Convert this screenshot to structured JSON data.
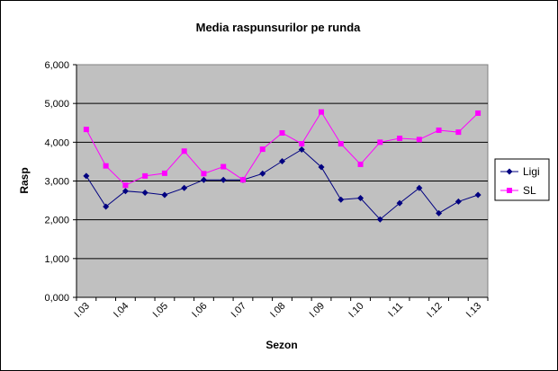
{
  "chart_data": {
    "type": "line",
    "title": "Media raspunsurilor pe runda",
    "xlabel": "Sezon",
    "ylabel": "Rasp",
    "ylim": [
      0,
      6
    ],
    "yticks": [
      "0,000",
      "1,000",
      "2,000",
      "3,000",
      "4,000",
      "5,000",
      "6,000"
    ],
    "grid": true,
    "legend_position": "right",
    "categories": [
      "I.03",
      "",
      "I.04",
      "",
      "I.05",
      "",
      "I.06",
      "",
      "I.07",
      "",
      "I.08",
      "",
      "I.09",
      "",
      "I.10",
      "",
      "I.11",
      "",
      "I.12",
      "",
      "I.13"
    ],
    "tick_labels": [
      "I.03",
      "I.04",
      "I.05",
      "I.06",
      "I.07",
      "I.08",
      "I.09",
      "I.10",
      "I.11",
      "I.12",
      "I.13"
    ],
    "series": [
      {
        "name": "Ligi",
        "color": "#000080",
        "marker": "diamond",
        "values": [
          3.13,
          2.34,
          2.74,
          2.7,
          2.64,
          2.82,
          3.03,
          3.03,
          3.03,
          3.19,
          3.51,
          3.81,
          3.36,
          2.52,
          2.56,
          2.01,
          2.43,
          2.82,
          2.17,
          2.47,
          2.64
        ]
      },
      {
        "name": "SL",
        "color": "#ff00ff",
        "marker": "square",
        "values": [
          4.33,
          3.39,
          2.89,
          3.13,
          3.2,
          3.77,
          3.19,
          3.37,
          3.03,
          3.82,
          4.24,
          3.96,
          4.78,
          3.96,
          3.43,
          4.0,
          4.1,
          4.07,
          4.31,
          4.26,
          4.75
        ]
      }
    ]
  }
}
